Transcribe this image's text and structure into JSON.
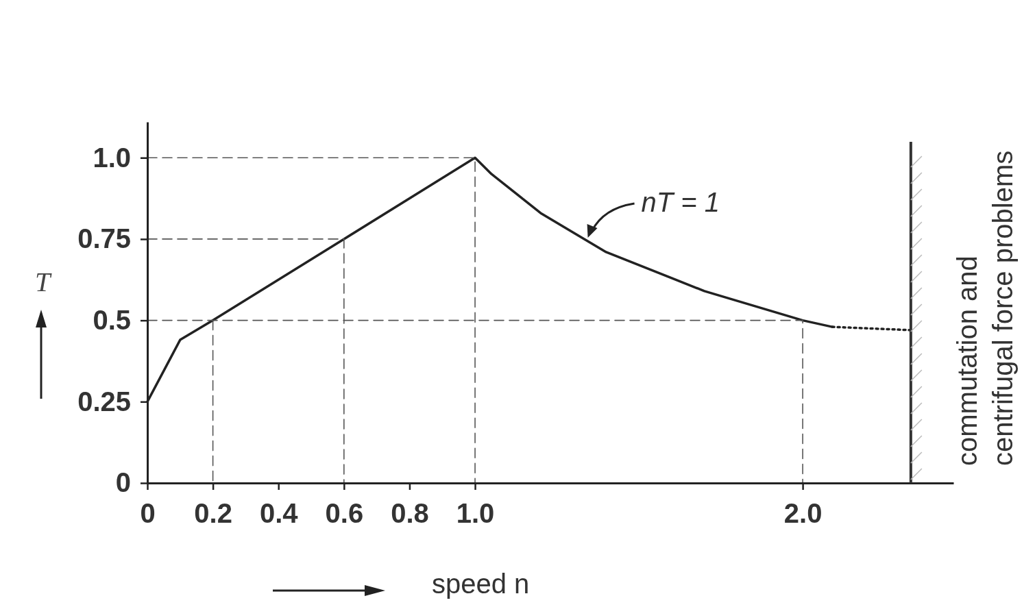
{
  "chart_data": {
    "type": "line",
    "xlabel": "speed n",
    "ylabel": "T",
    "xlim": [
      0,
      2.46
    ],
    "ylim": [
      0,
      1.11
    ],
    "xticks": [
      0,
      0.2,
      0.4,
      0.6,
      0.8,
      {
        "value": 1,
        "label": "1.0"
      },
      {
        "value": 2,
        "label": "2.0"
      }
    ],
    "yticks": [
      0,
      0.25,
      0.5,
      0.75,
      {
        "value": 1,
        "label": "1.0"
      }
    ],
    "grid": false,
    "marker": "none",
    "series": [
      {
        "color": "#222222",
        "line_style": "solid",
        "x": [
          0,
          0.1,
          0.2,
          0.6,
          1.0,
          1.05,
          1.1,
          1.15,
          1.2,
          1.3,
          1.4,
          1.5,
          1.6,
          1.7,
          1.8,
          1.9,
          2.0,
          2.09
        ],
        "values": [
          0.25,
          0.44,
          0.5,
          0.75,
          1.0,
          0.95,
          0.91,
          0.87,
          0.83,
          0.77,
          0.71,
          0.67,
          0.63,
          0.59,
          0.56,
          0.53,
          0.5,
          0.48
        ]
      },
      {
        "color": "#222222",
        "line_style": "dotted",
        "x": [
          2.09,
          2.33
        ],
        "values": [
          0.48,
          0.47
        ]
      },
      {
        "color": "#555555",
        "line_style": "dashed",
        "x": [
          0,
          1.0,
          1.0
        ],
        "values": [
          1.0,
          1.0,
          0
        ]
      },
      {
        "color": "#555555",
        "line_style": "dashed",
        "x": [
          0,
          0.6,
          0.6
        ],
        "values": [
          0.75,
          0.75,
          0
        ]
      },
      {
        "color": "#555555",
        "line_style": "dashed",
        "x": [
          0,
          2.0,
          2.0
        ],
        "values": [
          0.5,
          0.5,
          0
        ]
      },
      {
        "color": "#555555",
        "line_style": "dashed",
        "x": [
          0.2,
          0.2
        ],
        "values": [
          0.5,
          0
        ]
      }
    ],
    "ref_lines": [
      {
        "axis": "x",
        "value": 2.33,
        "label": "commutation and\ncentrifugal force problems",
        "color": "#333333",
        "line_style": "solid"
      }
    ],
    "annotations": [
      {
        "text": "nT = 1",
        "x": 1.34,
        "y": 0.75
      }
    ]
  }
}
